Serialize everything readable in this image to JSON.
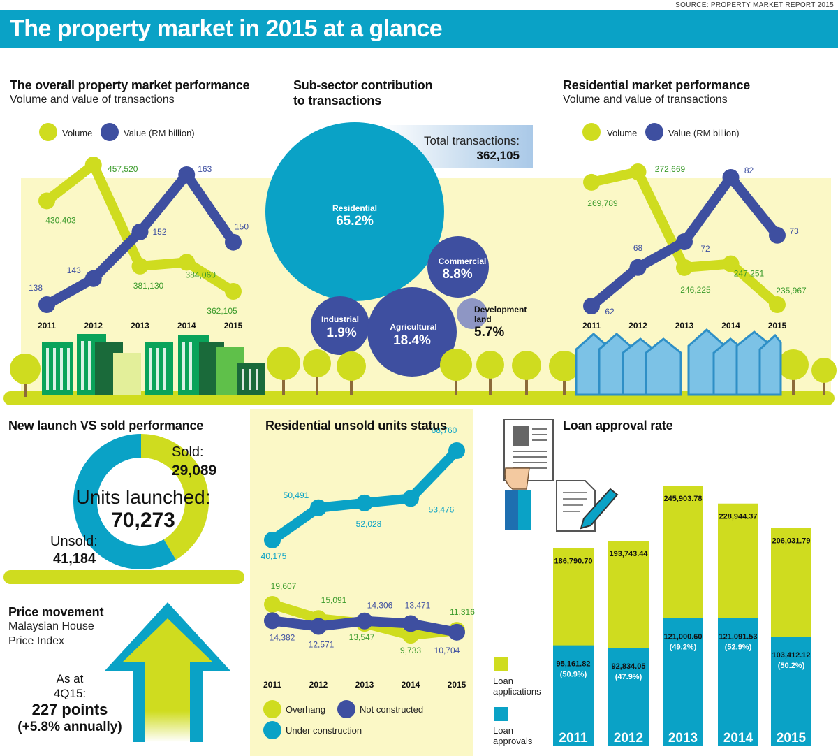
{
  "source": "SOURCE: PROPERTY MARKET REPORT 2015",
  "title": "The property market in 2015 at a glance",
  "colors": {
    "accent": "#0aa2c6",
    "lime": "#cfdc1f",
    "navy": "#3e4fa0",
    "cream": "#fbf8c6"
  },
  "overall": {
    "heading": "The overall property market performance",
    "subheading": "Volume and value of transactions",
    "legend_volume": "Volume",
    "legend_value": "Value (RM billion)",
    "chart_data": {
      "type": "line",
      "x": [
        "2011",
        "2012",
        "2013",
        "2014",
        "2015"
      ],
      "series": [
        {
          "name": "Volume",
          "values": [
            430403,
            457520,
            381130,
            384060,
            362105
          ],
          "labels": [
            "430,403",
            "457,520",
            "381,130",
            "384,060",
            "362,105"
          ]
        },
        {
          "name": "Value (RM billion)",
          "values": [
            138,
            143,
            152,
            163,
            150
          ],
          "labels": [
            "138",
            "143",
            "152",
            "163",
            "150"
          ]
        }
      ]
    }
  },
  "subsector": {
    "heading_line1": "Sub-sector contribution",
    "heading_line2": "to transactions",
    "total_label": "Total transactions:",
    "total_value": "362,105",
    "chart_data": {
      "type": "pie",
      "categories": [
        "Residential",
        "Commercial",
        "Industrial",
        "Agricultural",
        "Development land"
      ],
      "values": [
        65.2,
        8.8,
        1.9,
        18.4,
        5.7
      ]
    },
    "labels": {
      "residential": "Residential",
      "residential_pct": "65.2%",
      "commercial": "Commercial",
      "commercial_pct": "8.8%",
      "industrial": "Industrial",
      "industrial_pct": "1.9%",
      "agricultural": "Agricultural",
      "agricultural_pct": "18.4%",
      "devland1": "Development",
      "devland2": "land",
      "devland_pct": "5.7%"
    }
  },
  "residential": {
    "heading": "Residential market performance",
    "subheading": "Volume and value of transactions",
    "legend_volume": "Volume",
    "legend_value": "Value (RM billion)",
    "chart_data": {
      "type": "line",
      "x": [
        "2011",
        "2012",
        "2013",
        "2014",
        "2015"
      ],
      "series": [
        {
          "name": "Volume",
          "values": [
            269789,
            272669,
            246225,
            247251,
            235967
          ],
          "labels": [
            "269,789",
            "272,669",
            "246,225",
            "247,251",
            "235,967"
          ]
        },
        {
          "name": "Value (RM billion)",
          "values": [
            62,
            68,
            72,
            82,
            73
          ],
          "labels": [
            "62",
            "68",
            "72",
            "82",
            "73"
          ]
        }
      ]
    }
  },
  "launch": {
    "heading": "New launch VS sold performance",
    "sold_label": "Sold:",
    "sold_value": "29,089",
    "launched_label": "Units launched:",
    "launched_value": "70,273",
    "unsold_label": "Unsold:",
    "unsold_value": "41,184",
    "chart_data": {
      "type": "pie",
      "categories": [
        "Sold",
        "Unsold"
      ],
      "values": [
        29089,
        41184
      ]
    }
  },
  "price": {
    "heading": "Price movement",
    "sub1": "Malaysian House",
    "sub2": "Price Index",
    "asat1": "As at",
    "asat2": "4Q15:",
    "points": "227 points",
    "annual": "(+5.8% annually)"
  },
  "unsold": {
    "heading": "Residential unsold units status",
    "legend_overhang": "Overhang",
    "legend_notconstructed": "Not constructed",
    "legend_underconstruction": "Under construction",
    "chart_data": {
      "type": "line",
      "x": [
        "2011",
        "2012",
        "2013",
        "2014",
        "2015"
      ],
      "series": [
        {
          "name": "Under construction",
          "values": [
            40175,
            50491,
            52028,
            53476,
            68760
          ],
          "labels": [
            "40,175",
            "50,491",
            "52,028",
            "53,476",
            "68,760"
          ]
        },
        {
          "name": "Overhang",
          "values": [
            19607,
            15091,
            13547,
            9733,
            11316
          ],
          "labels": [
            "19,607",
            "15,091",
            "13,547",
            "9,733",
            "11,316"
          ]
        },
        {
          "name": "Not constructed",
          "values": [
            14382,
            12571,
            14306,
            13471,
            10704
          ],
          "labels": [
            "14,382",
            "12,571",
            "14,306",
            "13,471",
            "10,704"
          ]
        }
      ]
    }
  },
  "loan": {
    "heading": "Loan approval rate",
    "legend_applications1": "Loan",
    "legend_applications2": "applications",
    "legend_approvals1": "Loan",
    "legend_approvals2": "approvals",
    "chart_data": {
      "type": "bar",
      "categories": [
        "2011",
        "2012",
        "2013",
        "2014",
        "2015"
      ],
      "series": [
        {
          "name": "Loan applications",
          "values": [
            186790.7,
            193743.44,
            245903.78,
            228944.37,
            206031.79
          ],
          "labels": [
            "186,790.70",
            "193,743.44",
            "245,903.78",
            "228,944.37",
            "206,031.79"
          ]
        },
        {
          "name": "Loan approvals",
          "values": [
            95161.82,
            92834.05,
            121000.6,
            121091.53,
            103412.12
          ],
          "labels": [
            "95,161.82",
            "92,834.05",
            "121,000.60",
            "121,091.53",
            "103,412.12"
          ],
          "pct": [
            "(50.9%)",
            "(47.9%)",
            "(49.2%)",
            "(52.9%)",
            "(50.2%)"
          ]
        }
      ]
    }
  }
}
